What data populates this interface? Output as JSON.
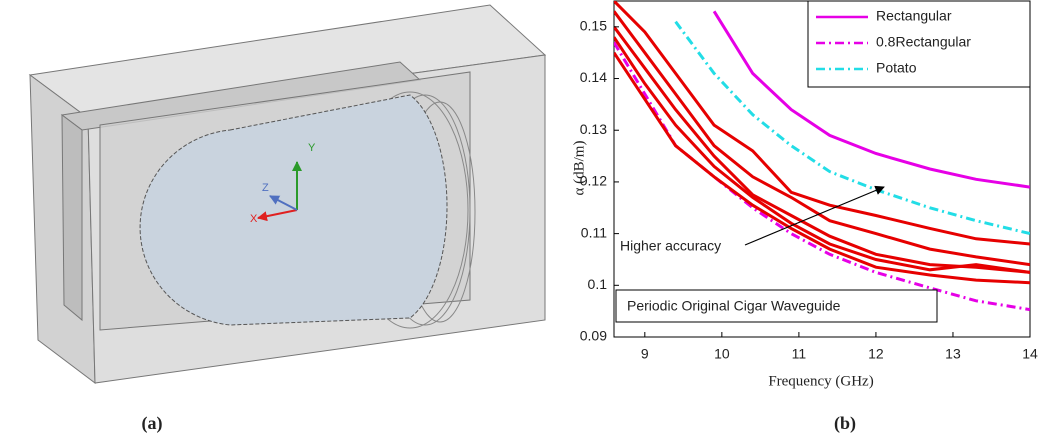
{
  "panels": {
    "caption_a": "(a)",
    "caption_b": "(b)",
    "triad": {
      "x": "X",
      "y": "Y",
      "z": "Z"
    }
  },
  "chart_data": {
    "type": "line",
    "xlabel": "Frequency (GHz)",
    "ylabel": "α (dB/m)",
    "x": [
      8.6,
      9,
      9.4,
      9.9,
      10.4,
      10.9,
      11.4,
      12,
      12.7,
      13.3,
      14
    ],
    "xlim": [
      8.6,
      14
    ],
    "xticks": [
      9,
      10,
      11,
      12,
      13,
      14
    ],
    "ylim": [
      0.09,
      0.155
    ],
    "yticks": [
      0.09,
      0.1,
      0.11,
      0.12,
      0.13,
      0.14,
      0.15
    ],
    "legend": "upper right",
    "series": [
      {
        "name": "Rectangular",
        "color": "#e600e6",
        "style": "solid",
        "values": [
          null,
          null,
          null,
          0.153,
          0.141,
          0.134,
          0.129,
          0.1255,
          0.1225,
          0.1205,
          0.119
        ]
      },
      {
        "name": "0.8Rectangular",
        "color": "#e600e6",
        "style": "dashdot",
        "values": [
          0.147,
          0.137,
          0.127,
          0.121,
          0.115,
          0.11,
          0.106,
          0.1025,
          0.0995,
          0.097,
          0.0953
        ]
      },
      {
        "name": "Potato",
        "color": "#22dde6",
        "style": "dashdot",
        "values": [
          null,
          null,
          0.151,
          0.141,
          0.133,
          0.127,
          0.122,
          0.1185,
          0.115,
          0.1125,
          0.11
        ]
      },
      {
        "color": "#e60000",
        "style": "solid",
        "values": [
          0.155,
          0.149,
          0.141,
          0.131,
          0.126,
          0.118,
          0.1155,
          0.1135,
          0.111,
          0.109,
          0.108
        ]
      },
      {
        "color": "#e60000",
        "style": "solid",
        "values": [
          0.153,
          0.145,
          0.137,
          0.127,
          0.121,
          0.117,
          0.1125,
          0.11,
          0.107,
          0.1055,
          0.104
        ]
      },
      {
        "color": "#e60000",
        "style": "solid",
        "values": [
          0.15,
          0.142,
          0.134,
          0.125,
          0.1175,
          0.1135,
          0.1095,
          0.106,
          0.104,
          0.1035,
          0.1025
        ]
      },
      {
        "color": "#e60000",
        "style": "solid",
        "values": [
          0.148,
          0.139,
          0.131,
          0.123,
          0.117,
          0.112,
          0.108,
          0.105,
          0.103,
          0.104,
          0.1025
        ]
      },
      {
        "color": "#e60000",
        "style": "solid",
        "values": [
          0.145,
          0.136,
          0.127,
          0.121,
          0.1155,
          0.111,
          0.107,
          0.1035,
          0.102,
          0.101,
          0.1005
        ]
      }
    ],
    "annotations": [
      "Higher accuracy",
      "Periodic Original Cigar Waveguide"
    ]
  }
}
